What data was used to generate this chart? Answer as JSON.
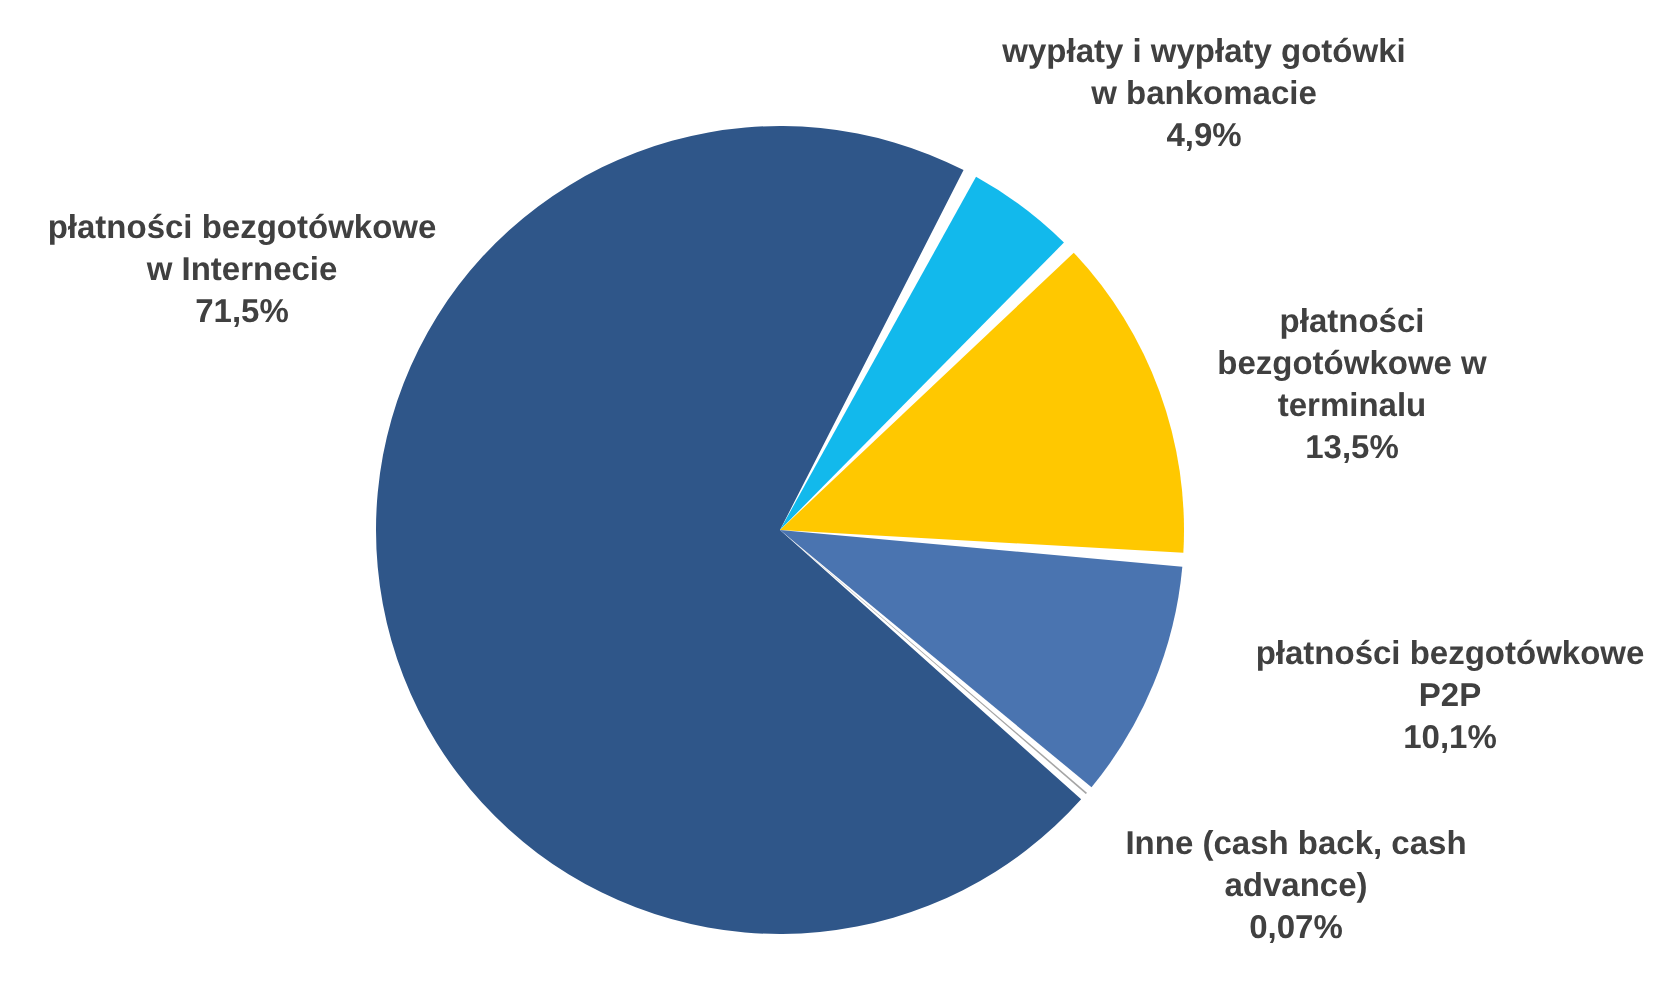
{
  "chart_data": {
    "type": "pie",
    "categories": [
      "płatności bezgotówkowe w Internecie",
      "wypłaty i wypłaty gotówki w bankomacie",
      "płatności bezgotówkowe w terminalu",
      "płatności bezgotówkowe P2P",
      "Inne (cash back, cash advance)"
    ],
    "values": [
      71.5,
      4.9,
      13.5,
      10.1,
      0.07
    ],
    "colors": [
      "#2f5689",
      "#12b9ec",
      "#ffc800",
      "#4a74b0",
      "#a5a5a5"
    ],
    "value_labels": [
      "71,5%",
      "4,9%",
      "13,5%",
      "10,1%",
      "0,07%"
    ]
  }
}
